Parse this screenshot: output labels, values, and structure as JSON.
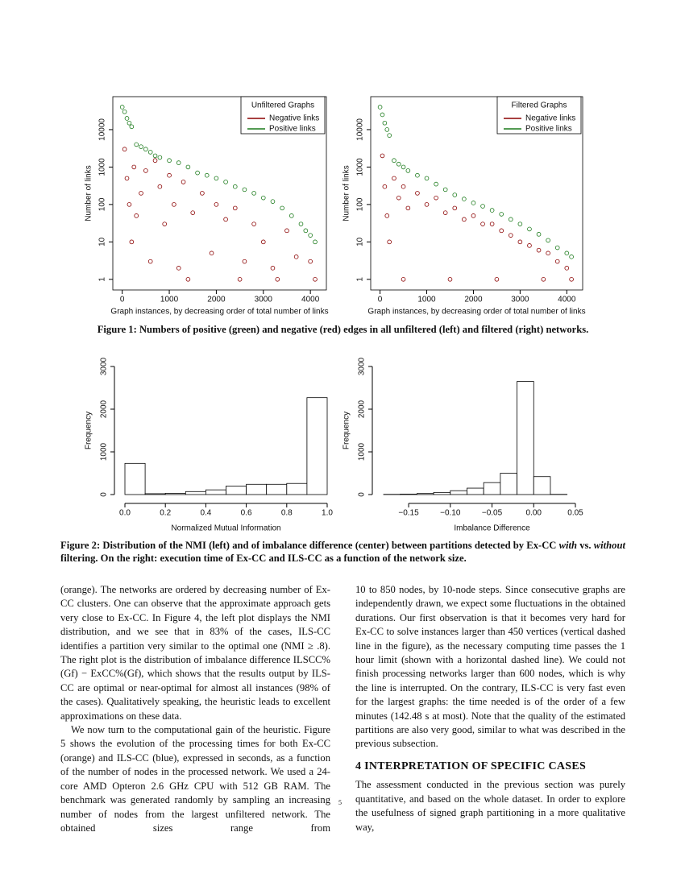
{
  "chart_data": [
    {
      "type": "scatter",
      "xlabel": "Graph instances, by decreasing order of total number of links",
      "ylabel": "Number of links",
      "xlim": [
        -200,
        4340
      ],
      "xticks": [
        0,
        1000,
        2000,
        3000,
        4000
      ],
      "ylim": [
        0.52,
        76000
      ],
      "yticks": [
        1,
        10,
        100,
        1000,
        10000
      ],
      "log_y": true,
      "legend_title": "Unfiltered Graphs",
      "legend": "top-right",
      "series": [
        {
          "name": "Negative links",
          "color": "#8b0000",
          "x": [
            50,
            100,
            150,
            200,
            250,
            300,
            400,
            500,
            600,
            700,
            800,
            900,
            1000,
            1100,
            1200,
            1300,
            1500,
            1700,
            1900,
            2000,
            2200,
            2400,
            2600,
            2800,
            3000,
            3200,
            3500,
            3700,
            4000,
            4100,
            1400,
            2500,
            3300
          ],
          "y": [
            3000,
            500,
            100,
            10,
            1000,
            50,
            200,
            800,
            3,
            1500,
            300,
            30,
            600,
            100,
            2,
            400,
            60,
            200,
            5,
            100,
            40,
            80,
            3,
            30,
            10,
            2,
            20,
            4,
            3,
            1,
            1,
            1,
            1
          ]
        },
        {
          "name": "Positive links",
          "color": "#1a7a1a",
          "x": [
            0,
            50,
            100,
            150,
            200,
            300,
            400,
            500,
            600,
            700,
            800,
            1000,
            1200,
            1400,
            1600,
            1800,
            2000,
            2200,
            2400,
            2600,
            2800,
            3000,
            3200,
            3400,
            3600,
            3800,
            3900,
            4000,
            4100
          ],
          "y": [
            40000,
            30000,
            20000,
            15000,
            12000,
            4000,
            3500,
            3000,
            2500,
            2000,
            1800,
            1500,
            1300,
            1000,
            700,
            600,
            500,
            400,
            300,
            250,
            200,
            150,
            120,
            80,
            50,
            30,
            20,
            15,
            10
          ]
        }
      ]
    },
    {
      "type": "scatter",
      "xlabel": "Graph instances, by decreasing order of total number of links",
      "ylabel": "Number of links",
      "xlim": [
        -200,
        4340
      ],
      "xticks": [
        0,
        1000,
        2000,
        3000,
        4000
      ],
      "ylim": [
        0.52,
        76000
      ],
      "yticks": [
        1,
        10,
        100,
        1000,
        10000
      ],
      "log_y": true,
      "legend_title": "Filtered Graphs",
      "legend": "top-right",
      "series": [
        {
          "name": "Negative links",
          "color": "#8b0000",
          "x": [
            50,
            100,
            150,
            200,
            300,
            400,
            500,
            600,
            800,
            1000,
            1200,
            1400,
            1600,
            1800,
            2000,
            2200,
            2400,
            2600,
            2800,
            3000,
            3200,
            3400,
            3600,
            3800,
            4000,
            500,
            1500,
            2500,
            3500,
            4100
          ],
          "y": [
            2000,
            300,
            50,
            10,
            500,
            150,
            300,
            80,
            200,
            100,
            150,
            60,
            80,
            40,
            50,
            30,
            30,
            20,
            15,
            10,
            8,
            6,
            5,
            3,
            2,
            1,
            1,
            1,
            1,
            1
          ]
        },
        {
          "name": "Positive links",
          "color": "#1a7a1a",
          "x": [
            0,
            50,
            100,
            150,
            200,
            300,
            400,
            500,
            600,
            800,
            1000,
            1200,
            1400,
            1600,
            1800,
            2000,
            2200,
            2400,
            2600,
            2800,
            3000,
            3200,
            3400,
            3600,
            3800,
            4000,
            4100
          ],
          "y": [
            40000,
            25000,
            15000,
            10000,
            7000,
            1500,
            1200,
            1000,
            800,
            600,
            500,
            350,
            250,
            180,
            140,
            110,
            90,
            70,
            55,
            40,
            30,
            22,
            16,
            11,
            7,
            5,
            4
          ]
        }
      ]
    },
    {
      "type": "histogram",
      "xlabel": "Normalized Mutual Information",
      "ylabel": "Frequency",
      "bins": [
        0,
        0.1,
        0.2,
        0.3,
        0.4,
        0.5,
        0.6,
        0.7,
        0.8,
        0.9,
        1.0
      ],
      "counts": [
        730,
        20,
        30,
        70,
        110,
        200,
        240,
        240,
        260,
        2270
      ],
      "xlim": [
        0,
        1
      ],
      "xticks": [
        {
          "value": 0,
          "label": "0.0"
        },
        0.2,
        0.4,
        0.6,
        0.8,
        {
          "value": 1,
          "label": "1.0"
        }
      ],
      "ylim": [
        0,
        3000
      ],
      "yticks": [
        0,
        1000,
        2000,
        3000
      ]
    },
    {
      "type": "histogram",
      "xlabel": "Imbalance Difference",
      "ylabel": "Frequency",
      "bins": [
        -0.18,
        -0.16,
        -0.14,
        -0.12,
        -0.1,
        -0.08,
        -0.06,
        -0.04,
        -0.02,
        0,
        0.02,
        0.04
      ],
      "counts": [
        5,
        10,
        25,
        50,
        90,
        150,
        280,
        500,
        2650,
        420,
        5
      ],
      "xlim": [
        -0.18,
        0.05
      ],
      "xticks": [
        {
          "value": -0.15,
          "label": "−0.15"
        },
        {
          "value": -0.1,
          "label": "−0.10"
        },
        {
          "value": -0.05,
          "label": "−0.05"
        },
        {
          "value": 0,
          "label": "0.00"
        },
        0.05
      ],
      "ylim": [
        0,
        3000
      ],
      "yticks": [
        0,
        1000,
        2000,
        3000
      ]
    }
  ],
  "captions": {
    "figure1": "Figure 1: Numbers of positive (green) and negative (red) edges in all unfiltered (left) and filtered (right) networks.",
    "figure2": [
      "Figure 2: Distribution of the NMI (left) and of imbalance difference (center) between partitions detected by Ex-CC ",
      "with",
      " vs. ",
      "without",
      " filtering. On the right: execution time of Ex-CC and ILS-CC as a function of the network size."
    ]
  },
  "body": {
    "left": [
      "(orange). The networks are ordered by decreasing number of Ex-CC clusters. One can observe that the approximate approach gets very close to Ex-CC. In Figure 4, the left plot displays the NMI distribution, and we see that in 83% of the cases, ILS-CC identifies a partition very similar to the optimal one (NMI ≥ .8). The right plot is the distribution of imbalance difference ILSCC%(Gf) − ExCC%(Gf), which shows that the results output by ILS-CC are optimal or near-optimal for almost all instances (98% of the cases). Qualitatively speaking, the heuristic leads to excellent approximations on these data.",
      "We now turn to the computational gain of the heuristic. Figure 5 shows the evolution of the processing times for both Ex-CC (orange) and ILS-CC (blue), expressed in seconds, as a function of the number of nodes in the processed network. We used a 24-core AMD Opteron 2.6 GHz CPU with 512 GB RAM. The benchmark was generated randomly by sampling an increasing number of nodes from the largest unfiltered network. The obtained sizes range from"
    ],
    "right": [
      "10 to 850 nodes, by 10-node steps. Since consecutive graphs are independently drawn, we expect some fluctuations in the obtained durations. Our first observation is that it becomes very hard for Ex-CC to solve instances larger than 450 vertices (vertical dashed line in the figure), as the necessary computing time passes the 1 hour limit (shown with a horizontal dashed line). We could not finish processing networks larger than 600 nodes, which is why the line is interrupted. On the contrary, ILS-CC is very fast even for the largest graphs: the time needed is of the order of a few minutes (142.48 s at most). Note that the quality of the estimated partitions are also very good, similar to what was described in the previous subsection.",
      "The assessment conducted in the previous section was purely quantitative, and based on the whole dataset. In order to explore the usefulness of signed graph partitioning in a more qualitative way,"
    ],
    "section_heading": "4   INTERPRETATION OF SPECIFIC CASES"
  },
  "page_number": "5"
}
